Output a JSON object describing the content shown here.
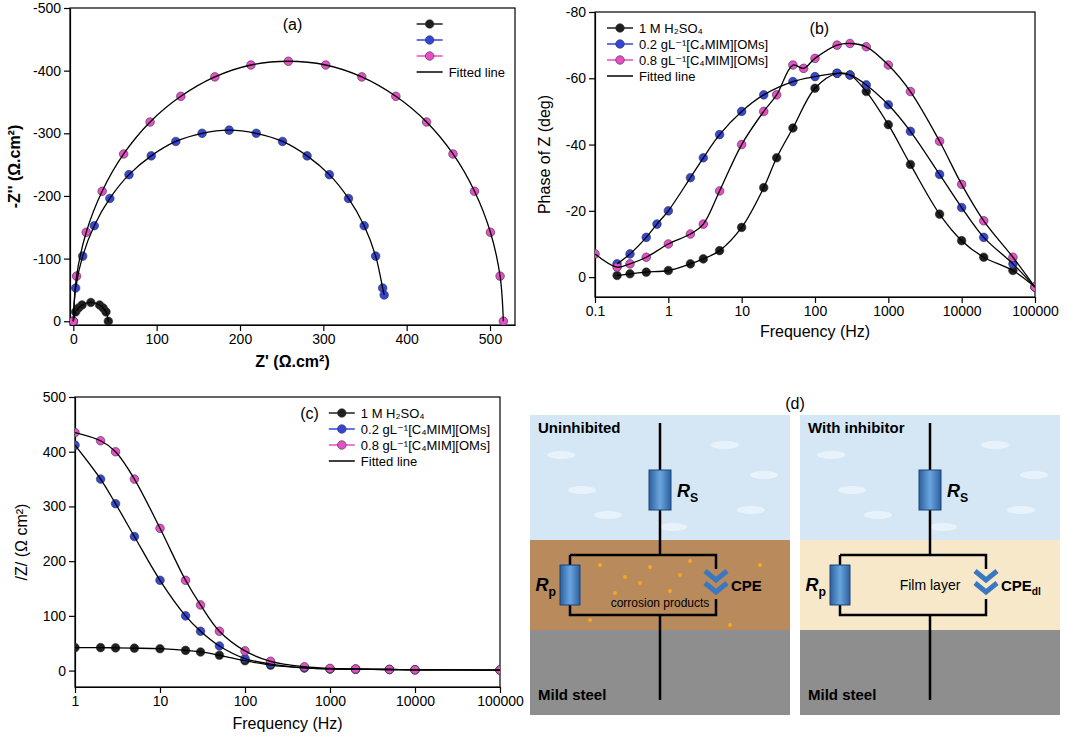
{
  "chart_data": [
    {
      "type": "scatter",
      "label": "(a)",
      "x_label": "Z' (Ω.cm²)",
      "y_label": "-Z'' (Ω.cm²)",
      "xlim": [
        -4,
        530
      ],
      "xticks": [
        0,
        100,
        200,
        300,
        400,
        500
      ],
      "ylim": [
        6,
        -500
      ],
      "yticks": [
        0,
        -100,
        -200,
        -300,
        -400,
        -500
      ],
      "legend": "upper right",
      "series": [
        {
          "color": "#1f1f1f",
          "marker": "circle",
          "x": [
            0,
            2.8,
            6.2,
            10.5,
            21,
            31.5,
            35.8,
            39.2,
            42
          ],
          "values": [
            0,
            -15,
            -21.2,
            -26,
            -30,
            -26,
            -21.2,
            -15,
            0
          ]
        },
        {
          "color": "#3346d6",
          "marker": "circle",
          "x": [
            0,
            2.8,
            11.2,
            25.1,
            43.8,
            66.8,
            93.5,
            123,
            154.5,
            187,
            219.5,
            251,
            280.5,
            307.2,
            330.2,
            349,
            362.8,
            371.2,
            373
          ],
          "values": [
            0,
            -53,
            -104,
            -152.5,
            -196,
            -234,
            -264,
            -287,
            -300,
            -305,
            -300,
            -287,
            -264,
            -234,
            -196,
            -152.5,
            -104,
            -53,
            -42
          ]
        },
        {
          "color": "#e64fc8",
          "marker": "circle",
          "x": [
            0,
            3.9,
            15.5,
            34.6,
            60.4,
            92.1,
            129,
            169.8,
            213.1,
            258,
            302.9,
            346.2,
            387,
            423.9,
            455.6,
            481.4,
            500.5,
            512.1,
            516
          ],
          "values": [
            0,
            -72,
            -142,
            -207.5,
            -267,
            -318,
            -359,
            -390,
            -409,
            -415,
            -409,
            -390,
            -359,
            -318,
            -267,
            -207.5,
            -142,
            -72,
            0
          ]
        },
        {
          "name": "Fitted line",
          "type": "line",
          "line_style": "solid",
          "color": "#000000",
          "x": [
            0,
            2.8,
            6.2,
            10.5,
            21,
            31.5,
            35.8,
            39.2,
            42
          ],
          "values": [
            0,
            -15,
            -21.2,
            -26,
            -30,
            -26,
            -21.2,
            -15,
            0
          ]
        },
        {
          "type": "line",
          "line_style": "solid",
          "color": "#000000",
          "x": [
            0,
            2.8,
            11.2,
            25.1,
            43.8,
            66.8,
            93.5,
            123,
            154.5,
            187,
            219.5,
            251,
            280.5,
            307.2,
            330.2,
            349,
            362.8,
            371.2,
            373
          ],
          "values": [
            0,
            -53,
            -104,
            -152.5,
            -196,
            -234,
            -264,
            -287,
            -300,
            -305,
            -300,
            -287,
            -264,
            -234,
            -196,
            -152.5,
            -104,
            -53,
            -42
          ]
        },
        {
          "type": "line",
          "line_style": "solid",
          "color": "#000000",
          "x": [
            0,
            3.9,
            15.5,
            34.6,
            60.4,
            92.1,
            129,
            169.8,
            213.1,
            258,
            302.9,
            346.2,
            387,
            423.9,
            455.6,
            481.4,
            500.5,
            512.1,
            516
          ],
          "values": [
            0,
            -72,
            -142,
            -207.5,
            -267,
            -318,
            -359,
            -390,
            -409,
            -415,
            -409,
            -390,
            -359,
            -318,
            -267,
            -207.5,
            -142,
            -72,
            0
          ]
        }
      ]
    },
    {
      "type": "scatter",
      "label": "(b)",
      "x_label": "Frequency (Hz)",
      "y_label": "Phase of Z (deg)",
      "log": "x",
      "xlim": [
        0.1,
        100000
      ],
      "xticks": [
        0.1,
        1,
        10,
        100,
        1000,
        10000,
        100000
      ],
      "ylim": [
        6,
        -80
      ],
      "yticks": [
        0,
        -20,
        -40,
        -60,
        -80
      ],
      "legend": "upper left",
      "series": [
        {
          "name": "1 M H₂SO₄",
          "color": "#1f1f1f",
          "marker": "circle",
          "x": [
            0.2,
            0.3,
            0.5,
            1,
            2,
            3,
            5,
            10,
            20,
            30,
            50,
            100,
            200,
            300,
            500,
            1000,
            2000,
            5000,
            10000,
            20000,
            50000,
            100000
          ],
          "values": [
            -0.5,
            -1,
            -1.5,
            -2,
            -4,
            -5.5,
            -8,
            -15,
            -27,
            -36,
            -45,
            -57,
            -61.5,
            -61,
            -56,
            -46,
            -34,
            -19,
            -11,
            -6,
            -2,
            3
          ]
        },
        {
          "name": "0.2 gL⁻¹[C₄MIM][OMs]",
          "color": "#3346d6",
          "marker": "circle",
          "x": [
            0.2,
            0.3,
            0.5,
            0.7,
            1,
            2,
            3,
            5,
            10,
            20,
            50,
            100,
            200,
            300,
            500,
            1000,
            2000,
            5000,
            10000,
            20000,
            50000,
            100000
          ],
          "values": [
            -4,
            -7,
            -12,
            -16,
            -20,
            -30,
            -36,
            -43,
            -50,
            -55,
            -59,
            -60.5,
            -61.5,
            -61,
            -58,
            -52,
            -44,
            -31,
            -21,
            -12,
            -4,
            3
          ]
        },
        {
          "name": "0.8 gL⁻¹[C₄MIM][OMs]",
          "color": "#e64fc8",
          "marker": "circle",
          "x": [
            0.1,
            0.2,
            0.3,
            0.5,
            1,
            2,
            3,
            5,
            10,
            20,
            30,
            50,
            70,
            100,
            200,
            300,
            500,
            1000,
            2000,
            5000,
            10000,
            20000,
            50000,
            100000
          ],
          "values": [
            -7,
            -3,
            -4,
            -6,
            -10,
            -13,
            -16,
            -26,
            -40,
            -50,
            -55,
            -64,
            -63,
            -66,
            -70,
            -70.5,
            -69.5,
            -64,
            -56,
            -41,
            -28,
            -17,
            -6,
            3
          ]
        },
        {
          "name": "Fitted line",
          "type": "line",
          "line_style": "solid",
          "color": "#000000",
          "x": [
            0.2,
            0.3,
            0.5,
            1,
            2,
            3,
            5,
            10,
            20,
            30,
            50,
            100,
            200,
            300,
            500,
            1000,
            2000,
            5000,
            10000,
            20000,
            50000,
            100000
          ],
          "values": [
            -0.5,
            -1,
            -1.5,
            -2,
            -4,
            -5.5,
            -8,
            -15,
            -27,
            -36,
            -45,
            -57,
            -61.5,
            -61,
            -56,
            -46,
            -34,
            -19,
            -11,
            -6,
            -2,
            3
          ]
        },
        {
          "type": "line",
          "line_style": "solid",
          "color": "#000000",
          "x": [
            0.2,
            0.3,
            0.5,
            0.7,
            1,
            2,
            3,
            5,
            10,
            20,
            50,
            100,
            200,
            300,
            500,
            1000,
            2000,
            5000,
            10000,
            20000,
            50000,
            100000
          ],
          "values": [
            -4,
            -7,
            -12,
            -16,
            -20,
            -30,
            -36,
            -43,
            -50,
            -55,
            -59,
            -60.5,
            -61.5,
            -61,
            -58,
            -52,
            -44,
            -31,
            -21,
            -12,
            -4,
            3
          ]
        },
        {
          "type": "line",
          "line_style": "solid",
          "color": "#000000",
          "x": [
            0.1,
            0.2,
            0.3,
            0.5,
            1,
            2,
            3,
            5,
            10,
            20,
            30,
            50,
            70,
            100,
            200,
            300,
            500,
            1000,
            2000,
            5000,
            10000,
            20000,
            50000,
            100000
          ],
          "values": [
            -7,
            -3,
            -4,
            -6,
            -10,
            -13,
            -16,
            -26,
            -40,
            -50,
            -55,
            -64,
            -63,
            -66,
            -70,
            -70.5,
            -69.5,
            -64,
            -56,
            -41,
            -28,
            -17,
            -6,
            3
          ]
        }
      ]
    },
    {
      "type": "scatter",
      "label": "(c)",
      "x_label": "Frequency (Hz)",
      "y_label": "/Z/ (Ω cm²)",
      "log": "x",
      "xlim": [
        1,
        100000
      ],
      "xticks": [
        1,
        10,
        100,
        1000,
        10000,
        100000
      ],
      "ylim": [
        -30,
        500
      ],
      "yticks": [
        0,
        100,
        200,
        300,
        400,
        500
      ],
      "legend": "upper right",
      "series": [
        {
          "name": "1 M H₂SO₄",
          "color": "#1f1f1f",
          "marker": "circle",
          "x": [
            1,
            2,
            3,
            5,
            10,
            20,
            30,
            50,
            100,
            200,
            500,
            1000,
            2000,
            5000,
            10000,
            100000
          ],
          "values": [
            42,
            42,
            41.5,
            41,
            40,
            37,
            34,
            28,
            18,
            10,
            5,
            3,
            2.5,
            2,
            1.5,
            1
          ]
        },
        {
          "name": "0.2 gL⁻¹[C₄MIM][OMs]",
          "color": "#3346d6",
          "marker": "circle",
          "x": [
            1,
            2,
            3,
            5,
            10,
            20,
            30,
            50,
            100,
            200,
            500,
            1000,
            2000,
            5000,
            10000,
            100000
          ],
          "values": [
            412,
            350,
            305,
            245,
            165,
            100,
            72,
            45,
            22,
            12,
            5,
            3,
            2.5,
            2,
            1.5,
            1
          ]
        },
        {
          "name": "0.8 gL⁻¹[C₄MIM][OMs]",
          "color": "#e64fc8",
          "marker": "circle",
          "x": [
            1,
            2,
            3,
            5,
            10,
            20,
            30,
            50,
            100,
            200,
            500,
            1000,
            2000,
            5000,
            10000,
            100000
          ],
          "values": [
            435,
            420,
            400,
            350,
            260,
            165,
            120,
            72,
            36,
            17,
            7,
            4,
            3,
            2,
            1.5,
            1
          ]
        },
        {
          "name": "Fitted line",
          "type": "line",
          "line_style": "solid",
          "color": "#000000",
          "x": [
            1,
            2,
            3,
            5,
            10,
            20,
            30,
            50,
            100,
            200,
            500,
            1000,
            2000,
            5000,
            10000,
            100000
          ],
          "values": [
            42,
            42,
            41.5,
            41,
            40,
            37,
            34,
            28,
            18,
            10,
            5,
            3,
            2.5,
            2,
            1.5,
            1
          ]
        },
        {
          "type": "line",
          "line_style": "solid",
          "color": "#000000",
          "x": [
            1,
            2,
            3,
            5,
            10,
            20,
            30,
            50,
            100,
            200,
            500,
            1000,
            2000,
            5000,
            10000,
            100000
          ],
          "values": [
            412,
            350,
            305,
            245,
            165,
            100,
            72,
            45,
            22,
            12,
            5,
            3,
            2.5,
            2,
            1.5,
            1
          ]
        },
        {
          "type": "line",
          "line_style": "solid",
          "color": "#000000",
          "x": [
            1,
            2,
            3,
            5,
            10,
            20,
            30,
            50,
            100,
            200,
            500,
            1000,
            2000,
            5000,
            10000,
            100000
          ],
          "values": [
            435,
            420,
            400,
            350,
            260,
            165,
            120,
            72,
            36,
            17,
            7,
            4,
            3,
            2,
            1.5,
            1
          ]
        }
      ]
    }
  ],
  "diagram": {
    "label": "(d)",
    "panels": [
      {
        "title": "Uninhibited",
        "rs": {
          "text": "R",
          "sub": "S"
        },
        "rp": {
          "text": "R",
          "sub": "p"
        },
        "cpe": {
          "text": "CPE"
        },
        "layer": "corrosion products",
        "substrate": "Mild steel"
      },
      {
        "title": "With inhibitor",
        "rs": {
          "text": "R",
          "sub": "S"
        },
        "rp": {
          "text": "R",
          "sub": "p"
        },
        "cpe": {
          "text": "CPE",
          "sub": "dl"
        },
        "layer": "Film layer",
        "substrate": "Mild steel"
      }
    ]
  }
}
